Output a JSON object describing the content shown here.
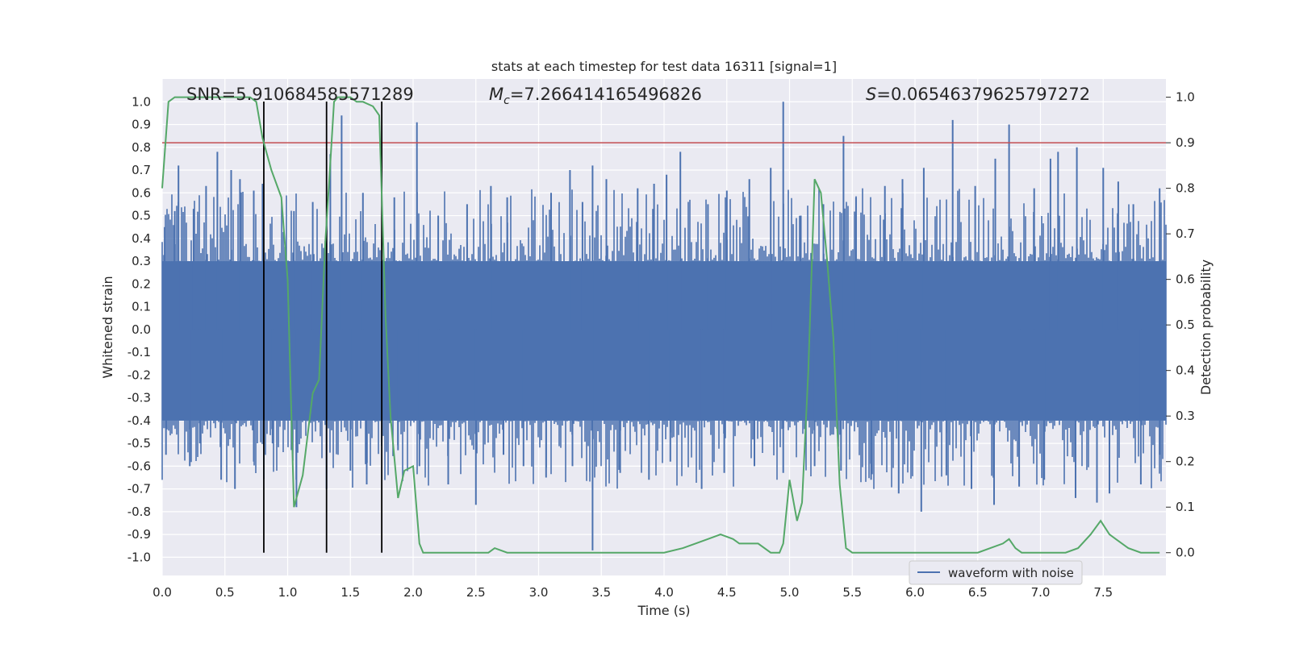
{
  "chart_data": {
    "type": "line",
    "title": "stats at each timestep for test data 16311 [signal=1]",
    "xlabel": "Time (s)",
    "ylabel_left": "Whitened strain",
    "ylabel_right": "Detection probability",
    "xlim": [
      0.0,
      8.0
    ],
    "ylim_left": [
      -1.08,
      1.1
    ],
    "ylim_right": [
      -0.05,
      1.04
    ],
    "x_ticks": [
      "0.0",
      "0.5",
      "1.0",
      "1.5",
      "2.0",
      "2.5",
      "3.0",
      "3.5",
      "4.0",
      "4.5",
      "5.0",
      "5.5",
      "6.0",
      "6.5",
      "7.0",
      "7.5"
    ],
    "y_ticks_left": [
      "1.0",
      "0.9",
      "0.8",
      "0.7",
      "0.6",
      "0.5",
      "0.4",
      "0.3",
      "0.2",
      "0.1",
      "0.0",
      "-0.1",
      "-0.2",
      "-0.3",
      "-0.4",
      "-0.5",
      "-0.6",
      "-0.7",
      "-0.8",
      "-0.9",
      "-1.0"
    ],
    "y_ticks_right": [
      "1.0",
      "0.9",
      "0.8",
      "0.7",
      "0.6",
      "0.5",
      "0.4",
      "0.3",
      "0.2",
      "0.1",
      "0.0"
    ],
    "grid": true,
    "legend": {
      "position": "bottom-right",
      "entries": [
        "waveform with noise"
      ]
    },
    "annotations": {
      "snr": "SNR=5.910684585571289",
      "mc_symbol": "M",
      "mc_sub": "c",
      "mc_value": "=7.266414165496826",
      "s_symbol": "S",
      "s_value": "=0.06546379625797272"
    },
    "threshold": {
      "axis": "right",
      "value": 0.9,
      "color": "#c44e52"
    },
    "vertical_lines": {
      "x": [
        0.81,
        1.31,
        1.75
      ],
      "color": "#000000"
    },
    "waveform": {
      "name": "waveform with noise",
      "color": "#4c72b0",
      "envelope_positive": 0.3,
      "envelope_negative": -0.4,
      "peaks_positive": [
        [
          0.02,
          0.45
        ],
        [
          0.1,
          0.52
        ],
        [
          0.13,
          0.72
        ],
        [
          0.25,
          0.53
        ],
        [
          0.35,
          0.63
        ],
        [
          0.44,
          0.78
        ],
        [
          0.55,
          0.7
        ],
        [
          0.62,
          0.66
        ],
        [
          0.73,
          0.61
        ],
        [
          0.8,
          0.64
        ],
        [
          1.05,
          0.52
        ],
        [
          1.2,
          0.56
        ],
        [
          1.34,
          0.77
        ],
        [
          1.43,
          0.94
        ],
        [
          1.6,
          0.6
        ],
        [
          1.85,
          0.58
        ],
        [
          2.03,
          0.91
        ],
        [
          2.2,
          0.5
        ],
        [
          2.43,
          0.55
        ],
        [
          2.62,
          0.63
        ],
        [
          2.75,
          0.58
        ],
        [
          3.1,
          0.6
        ],
        [
          3.25,
          0.7
        ],
        [
          3.35,
          0.56
        ],
        [
          3.43,
          0.72
        ],
        [
          3.54,
          0.66
        ],
        [
          3.79,
          0.62
        ],
        [
          3.92,
          0.64
        ],
        [
          4.02,
          0.68
        ],
        [
          4.13,
          0.78
        ],
        [
          4.35,
          0.55
        ],
        [
          4.5,
          0.61
        ],
        [
          4.68,
          0.66
        ],
        [
          4.85,
          0.71
        ],
        [
          4.95,
          1.0
        ],
        [
          5.09,
          0.5
        ],
        [
          5.27,
          0.55
        ],
        [
          5.43,
          0.85
        ],
        [
          5.53,
          0.58
        ],
        [
          5.76,
          0.63
        ],
        [
          5.9,
          0.66
        ],
        [
          6.07,
          0.71
        ],
        [
          6.3,
          0.92
        ],
        [
          6.48,
          0.63
        ],
        [
          6.64,
          0.75
        ],
        [
          6.75,
          0.9
        ],
        [
          6.95,
          0.62
        ],
        [
          7.08,
          0.75
        ],
        [
          7.14,
          0.78
        ],
        [
          7.29,
          0.8
        ],
        [
          7.5,
          0.71
        ],
        [
          7.62,
          0.65
        ],
        [
          7.74,
          0.55
        ],
        [
          7.95,
          0.62
        ]
      ],
      "peaks_negative": [
        [
          0.03,
          -0.55
        ],
        [
          0.22,
          -0.6
        ],
        [
          0.3,
          -0.5
        ],
        [
          0.47,
          -0.66
        ],
        [
          0.58,
          -0.7
        ],
        [
          0.73,
          -0.58
        ],
        [
          0.88,
          -0.5
        ],
        [
          1.07,
          -0.78
        ],
        [
          1.31,
          -0.7
        ],
        [
          1.5,
          -0.62
        ],
        [
          1.63,
          -0.68
        ],
        [
          1.88,
          -0.53
        ],
        [
          2.05,
          -0.6
        ],
        [
          2.28,
          -0.68
        ],
        [
          2.5,
          -0.77
        ],
        [
          2.72,
          -0.55
        ],
        [
          2.88,
          -0.6
        ],
        [
          3.06,
          -0.65
        ],
        [
          3.27,
          -0.6
        ],
        [
          3.43,
          -0.97
        ],
        [
          3.65,
          -0.63
        ],
        [
          3.88,
          -0.66
        ],
        [
          4.05,
          -0.58
        ],
        [
          4.3,
          -0.7
        ],
        [
          4.48,
          -0.63
        ],
        [
          4.72,
          -0.6
        ],
        [
          4.95,
          -0.63
        ],
        [
          5.2,
          -0.6
        ],
        [
          5.41,
          -0.62
        ],
        [
          5.65,
          -0.66
        ],
        [
          5.87,
          -0.72
        ],
        [
          6.05,
          -0.8
        ],
        [
          6.25,
          -0.64
        ],
        [
          6.45,
          -0.7
        ],
        [
          6.63,
          -0.77
        ],
        [
          6.83,
          -0.69
        ],
        [
          7.03,
          -0.66
        ],
        [
          7.28,
          -0.74
        ],
        [
          7.45,
          -0.76
        ],
        [
          7.55,
          -0.72
        ],
        [
          7.8,
          -0.68
        ],
        [
          7.95,
          -0.55
        ]
      ]
    },
    "detection_probability": {
      "color": "#55a868",
      "points": [
        [
          0.0,
          0.8
        ],
        [
          0.05,
          0.99
        ],
        [
          0.1,
          1.0
        ],
        [
          0.5,
          1.0
        ],
        [
          0.7,
          1.0
        ],
        [
          0.75,
          0.99
        ],
        [
          0.8,
          0.91
        ],
        [
          0.87,
          0.84
        ],
        [
          0.95,
          0.78
        ],
        [
          1.0,
          0.6
        ],
        [
          1.05,
          0.1
        ],
        [
          1.12,
          0.17
        ],
        [
          1.2,
          0.35
        ],
        [
          1.25,
          0.38
        ],
        [
          1.3,
          0.68
        ],
        [
          1.33,
          0.81
        ],
        [
          1.37,
          0.99
        ],
        [
          1.4,
          1.0
        ],
        [
          1.5,
          1.0
        ],
        [
          1.55,
          0.99
        ],
        [
          1.6,
          0.99
        ],
        [
          1.68,
          0.98
        ],
        [
          1.73,
          0.96
        ],
        [
          1.78,
          0.52
        ],
        [
          1.82,
          0.3
        ],
        [
          1.88,
          0.12
        ],
        [
          1.93,
          0.18
        ],
        [
          2.0,
          0.19
        ],
        [
          2.05,
          0.02
        ],
        [
          2.08,
          0.0
        ],
        [
          2.12,
          0.0
        ],
        [
          2.5,
          0.0
        ],
        [
          2.6,
          0.0
        ],
        [
          2.65,
          0.01
        ],
        [
          2.75,
          0.0
        ],
        [
          3.0,
          0.0
        ],
        [
          3.5,
          0.0
        ],
        [
          3.6,
          0.0
        ],
        [
          3.7,
          0.0
        ],
        [
          4.0,
          0.0
        ],
        [
          4.15,
          0.01
        ],
        [
          4.25,
          0.02
        ],
        [
          4.35,
          0.03
        ],
        [
          4.45,
          0.04
        ],
        [
          4.55,
          0.03
        ],
        [
          4.6,
          0.02
        ],
        [
          4.75,
          0.02
        ],
        [
          4.85,
          0.0
        ],
        [
          4.92,
          0.0
        ],
        [
          4.95,
          0.02
        ],
        [
          5.0,
          0.16
        ],
        [
          5.06,
          0.07
        ],
        [
          5.1,
          0.11
        ],
        [
          5.15,
          0.4
        ],
        [
          5.2,
          0.82
        ],
        [
          5.25,
          0.79
        ],
        [
          5.3,
          0.64
        ],
        [
          5.35,
          0.47
        ],
        [
          5.4,
          0.15
        ],
        [
          5.45,
          0.01
        ],
        [
          5.5,
          0.0
        ],
        [
          5.6,
          0.0
        ],
        [
          6.0,
          0.0
        ],
        [
          6.5,
          0.0
        ],
        [
          6.6,
          0.01
        ],
        [
          6.7,
          0.02
        ],
        [
          6.75,
          0.03
        ],
        [
          6.8,
          0.01
        ],
        [
          6.85,
          0.0
        ],
        [
          7.0,
          0.0
        ],
        [
          7.2,
          0.0
        ],
        [
          7.3,
          0.01
        ],
        [
          7.4,
          0.04
        ],
        [
          7.48,
          0.07
        ],
        [
          7.55,
          0.04
        ],
        [
          7.6,
          0.03
        ],
        [
          7.7,
          0.01
        ],
        [
          7.8,
          0.0
        ],
        [
          7.9,
          0.0
        ],
        [
          7.95,
          0.0
        ]
      ]
    }
  }
}
